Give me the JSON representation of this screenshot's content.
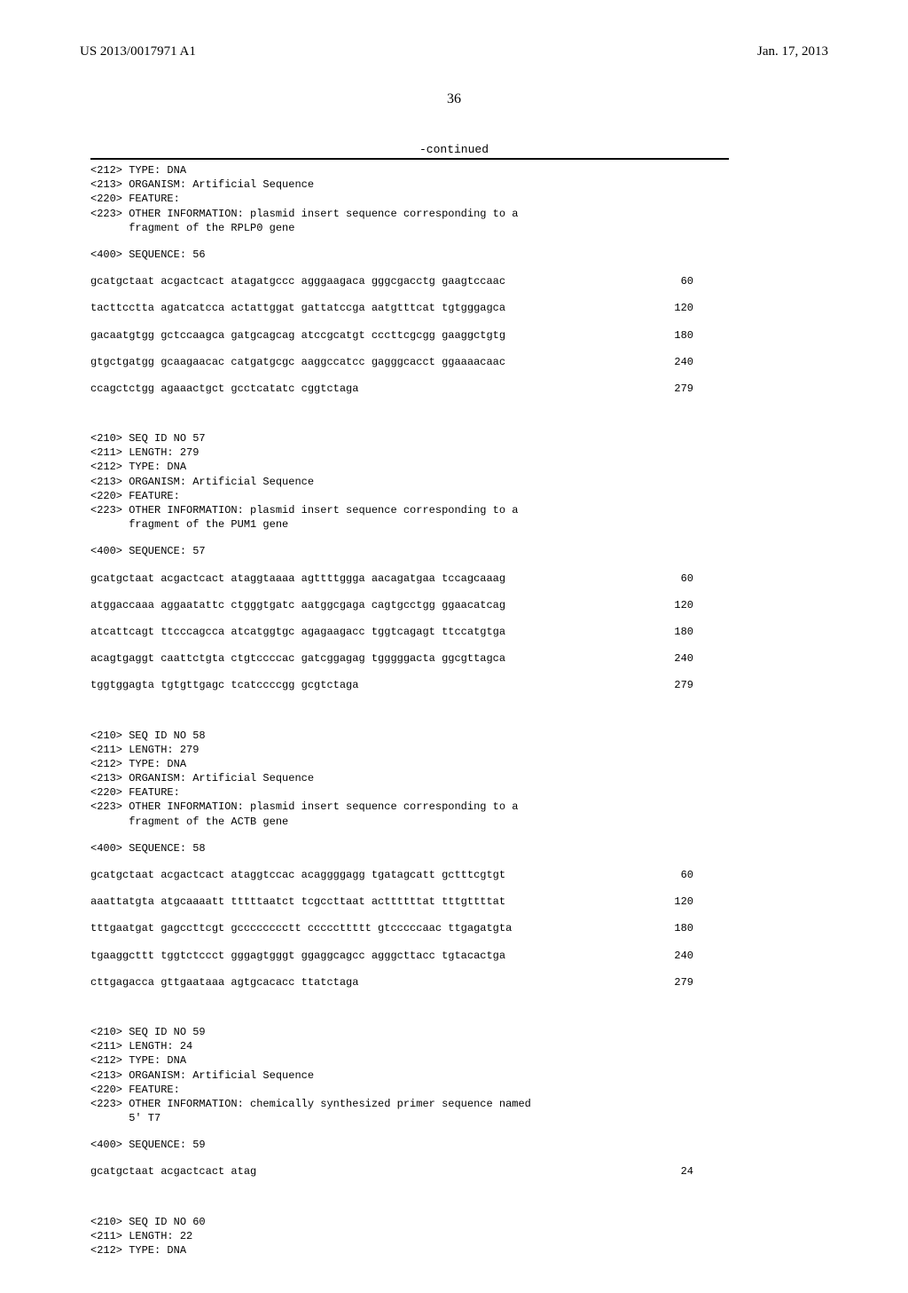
{
  "header": {
    "pub_number": "US 2013/0017971 A1",
    "pub_date": "Jan. 17, 2013"
  },
  "page_number": "36",
  "continued_label": "-continued",
  "blocks": [
    {
      "meta": [
        "<212> TYPE: DNA",
        "<213> ORGANISM: Artificial Sequence",
        "<220> FEATURE:",
        "<223> OTHER INFORMATION: plasmid insert sequence corresponding to a",
        "      fragment of the RPLP0 gene"
      ],
      "seq_header": "<400> SEQUENCE: 56",
      "rows": [
        {
          "seq": "gcatgctaat acgactcact atagatgccc agggaagaca gggcgacctg gaagtccaac",
          "n": "60"
        },
        {
          "seq": "tacttcctta agatcatcca actattggat gattatccga aatgtttcat tgtgggagca",
          "n": "120"
        },
        {
          "seq": "gacaatgtgg gctccaagca gatgcagcag atccgcatgt cccttcgcgg gaaggctgtg",
          "n": "180"
        },
        {
          "seq": "gtgctgatgg gcaagaacac catgatgcgc aaggccatcc gagggcacct ggaaaacaac",
          "n": "240"
        },
        {
          "seq": "ccagctctgg agaaactgct gcctcatatc cggtctaga",
          "n": "279"
        }
      ]
    },
    {
      "meta": [
        "<210> SEQ ID NO 57",
        "<211> LENGTH: 279",
        "<212> TYPE: DNA",
        "<213> ORGANISM: Artificial Sequence",
        "<220> FEATURE:",
        "<223> OTHER INFORMATION: plasmid insert sequence corresponding to a",
        "      fragment of the PUM1 gene"
      ],
      "seq_header": "<400> SEQUENCE: 57",
      "rows": [
        {
          "seq": "gcatgctaat acgactcact ataggtaaaa agttttggga aacagatgaa tccagcaaag",
          "n": "60"
        },
        {
          "seq": "atggaccaaa aggaatattc ctgggtgatc aatggcgaga cagtgcctgg ggaacatcag",
          "n": "120"
        },
        {
          "seq": "atcattcagt ttcccagcca atcatggtgc agagaagacc tggtcagagt ttccatgtga",
          "n": "180"
        },
        {
          "seq": "acagtgaggt caattctgta ctgtccccac gatcggagag tgggggacta ggcgttagca",
          "n": "240"
        },
        {
          "seq": "tggtggagta tgtgttgagc tcatccccgg gcgtctaga",
          "n": "279"
        }
      ]
    },
    {
      "meta": [
        "<210> SEQ ID NO 58",
        "<211> LENGTH: 279",
        "<212> TYPE: DNA",
        "<213> ORGANISM: Artificial Sequence",
        "<220> FEATURE:",
        "<223> OTHER INFORMATION: plasmid insert sequence corresponding to a",
        "      fragment of the ACTB gene"
      ],
      "seq_header": "<400> SEQUENCE: 58",
      "rows": [
        {
          "seq": "gcatgctaat acgactcact ataggtccac acaggggagg tgatagcatt gctttcgtgt",
          "n": "60"
        },
        {
          "seq": "aaattatgta atgcaaaatt tttttaatct tcgccttaat acttttttat tttgttttat",
          "n": "120"
        },
        {
          "seq": "tttgaatgat gagccttcgt gcccccccctt cccccttttt gtcccccaac ttgagatgta",
          "n": "180"
        },
        {
          "seq": "tgaaggcttt tggtctccct gggagtgggt ggaggcagcc agggcttacc tgtacactga",
          "n": "240"
        },
        {
          "seq": "cttgagacca gttgaataaa agtgcacacc ttatctaga",
          "n": "279"
        }
      ]
    },
    {
      "meta": [
        "<210> SEQ ID NO 59",
        "<211> LENGTH: 24",
        "<212> TYPE: DNA",
        "<213> ORGANISM: Artificial Sequence",
        "<220> FEATURE:",
        "<223> OTHER INFORMATION: chemically synthesized primer sequence named",
        "      5' T7"
      ],
      "seq_header": "<400> SEQUENCE: 59",
      "rows": [
        {
          "seq": "gcatgctaat acgactcact atag",
          "n": "24"
        }
      ]
    },
    {
      "meta": [
        "<210> SEQ ID NO 60",
        "<211> LENGTH: 22",
        "<212> TYPE: DNA"
      ],
      "seq_header": null,
      "rows": []
    }
  ]
}
